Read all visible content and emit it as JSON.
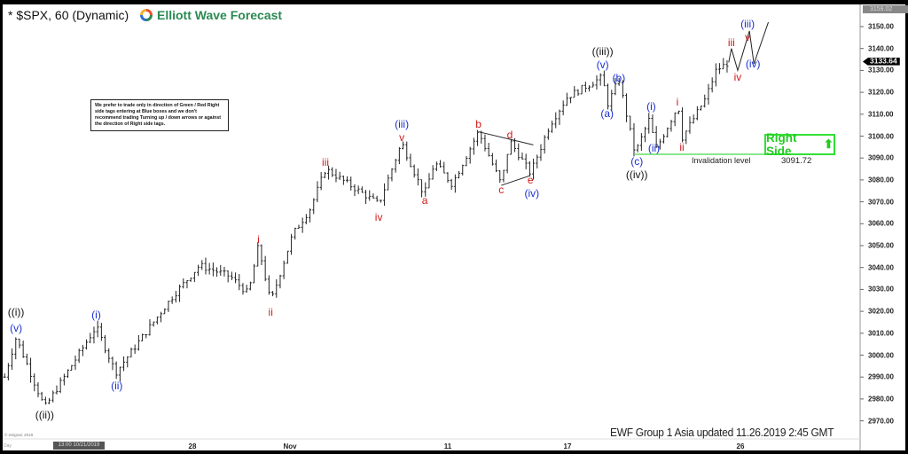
{
  "header": {
    "title": "* $SPX, 60 (Dynamic)",
    "logo_text": "Elliott Wave Forecast"
  },
  "note": "We prefer to trade only in direction of Green / Red Right side tags entering at Blue boxes and we don't recommend trading Turning up / down arrows or against the direction of Right side tags.",
  "right_side": {
    "label": "Right Side",
    "icon": "arrow-up-icon",
    "color": "#22cc22"
  },
  "invalidation": {
    "label": "Invalidation level",
    "value_text": "3091.72",
    "value": 3091.72,
    "start": "2019-11-21T03:00",
    "color": "#66dd66"
  },
  "footer": "EWF Group  1 Asia  updated 11.26.2019 2:45 GMT",
  "copyright": "© eSignal, 2019",
  "day_label": "Day",
  "crosshair_label": "13:00 10/21/2019",
  "price_tags": {
    "last": "3133.64",
    "top": "3159.02"
  },
  "colors": {
    "black_labels": "#111111",
    "blue_labels": "#1a2fd0",
    "red_labels": "#d01818",
    "bars": "#222222"
  },
  "chart_data": {
    "type": "ohlc-bar",
    "symbol": "$SPX",
    "interval": "60",
    "ylim": [
      2962,
      3160
    ],
    "yticks": [
      3150,
      3140,
      3130,
      3120,
      3110,
      3100,
      3090,
      3080,
      3070,
      3060,
      3050,
      3040,
      3030,
      3020,
      3010,
      3000,
      2990,
      2980,
      2970
    ],
    "ytick_labels": [
      "3150.00",
      "3140.00",
      "3130.00",
      "3120.00",
      "3110.00",
      "3100.00",
      "3090.00",
      "3080.00",
      "3070.00",
      "3060.00",
      "3050.00",
      "3040.00",
      "3030.00",
      "3020.00",
      "3010.00",
      "3000.00",
      "2990.00",
      "2980.00",
      "2970.00"
    ],
    "xticks": [
      {
        "label": "28",
        "date": "2019-10-28"
      },
      {
        "label": "Nov",
        "date": "2019-11-01"
      },
      {
        "label": "11",
        "date": "2019-11-11"
      },
      {
        "label": "17",
        "date": "2019-11-18"
      },
      {
        "label": "26",
        "date": "2019-11-26"
      }
    ],
    "last_price": 3133.64,
    "price_path": [
      [
        "2019-10-21T04:00",
        2990
      ],
      [
        "2019-10-21T14:00",
        3008
      ],
      [
        "2019-10-22T15:00",
        2976
      ],
      [
        "2019-10-24T12:00",
        3013
      ],
      [
        "2019-10-25T05:00",
        2992
      ],
      [
        "2019-10-27T07:00",
        3027
      ],
      [
        "2019-10-28T07:00",
        3041
      ],
      [
        "2019-10-29T13:00",
        3036
      ],
      [
        "2019-10-30T07:00",
        3028
      ],
      [
        "2019-10-30T17:00",
        3050
      ],
      [
        "2019-10-31T05:00",
        3024
      ],
      [
        "2019-11-01T04:00",
        3055
      ],
      [
        "2019-11-02T07:00",
        3067
      ],
      [
        "2019-11-03T06:00",
        3085
      ],
      [
        "2019-11-06T15:00",
        3069
      ],
      [
        "2019-11-08T02:00",
        3097
      ],
      [
        "2019-11-09T12:00",
        3073
      ],
      [
        "2019-11-10T04:00",
        3088
      ],
      [
        "2019-11-11T06:00",
        3078
      ],
      [
        "2019-11-12T19:00",
        3102
      ],
      [
        "2019-11-14T03:00",
        3078
      ],
      [
        "2019-11-14T15:00",
        3098
      ],
      [
        "2019-11-15T20:00",
        3083
      ],
      [
        "2019-11-16T23:00",
        3105
      ],
      [
        "2019-11-18T00:00",
        3118
      ],
      [
        "2019-11-19T15:00",
        3127
      ],
      [
        "2019-11-19T20:00",
        3114
      ],
      [
        "2019-11-20T09:00",
        3126
      ],
      [
        "2019-11-21T03:00",
        3092
      ],
      [
        "2019-11-21T21:00",
        3110
      ],
      [
        "2019-11-22T00:00",
        3092
      ],
      [
        "2019-11-23T03:00",
        3114
      ],
      [
        "2019-11-23T07:00",
        3099
      ],
      [
        "2019-11-24T09:00",
        3117
      ],
      [
        "2019-11-24T21:00",
        3130
      ],
      [
        "2019-11-25T11:00",
        3133.64
      ]
    ],
    "projection_path": [
      [
        "2019-11-25T11:00",
        3133.64
      ],
      [
        "2019-11-25T14:00",
        3140
      ],
      [
        "2019-11-25T21:00",
        3130
      ],
      [
        "2019-11-26T10:00",
        3148
      ],
      [
        "2019-11-26T15:00",
        3133
      ],
      [
        "2019-11-27T07:00",
        3152
      ]
    ],
    "triangle_lines": [
      [
        [
          "2019-11-12T19:00",
          3102
        ],
        [
          "2019-11-16T00:00",
          3096
        ]
      ],
      [
        [
          "2019-11-14T03:00",
          3077.5
        ],
        [
          "2019-11-15T20:00",
          3082
        ]
      ]
    ],
    "wave_labels": [
      {
        "text": "((i))",
        "color": "black",
        "date": "2019-10-21T14:00",
        "price": 3019.6
      },
      {
        "text": "(v)",
        "color": "blue",
        "date": "2019-10-21T14:00",
        "price": 3012.3
      },
      {
        "text": "((ii))",
        "color": "black",
        "date": "2019-10-22T15:00",
        "price": 2972.7
      },
      {
        "text": "(i)",
        "color": "blue",
        "date": "2019-10-24T12:00",
        "price": 3018.4
      },
      {
        "text": "(ii)",
        "color": "blue",
        "date": "2019-10-25T06:00",
        "price": 2986
      },
      {
        "text": "i",
        "color": "red",
        "date": "2019-10-30T17:00",
        "price": 3052.8
      },
      {
        "text": "ii",
        "color": "red",
        "date": "2019-10-31T05:00",
        "price": 3019.6
      },
      {
        "text": "iii",
        "color": "red",
        "date": "2019-11-03T06:00",
        "price": 3088
      },
      {
        "text": "iv",
        "color": "red",
        "date": "2019-11-06T15:00",
        "price": 3063
      },
      {
        "text": "(iii)",
        "color": "blue",
        "date": "2019-11-08T02:00",
        "price": 3105.5
      },
      {
        "text": "v",
        "color": "red",
        "date": "2019-11-08T02:00",
        "price": 3100
      },
      {
        "text": "a",
        "color": "red",
        "date": "2019-11-09T13:00",
        "price": 3070.6
      },
      {
        "text": "b",
        "color": "red",
        "date": "2019-11-12T19:00",
        "price": 3105.5
      },
      {
        "text": "c",
        "color": "red",
        "date": "2019-11-14T03:00",
        "price": 3075.5
      },
      {
        "text": "d",
        "color": "red",
        "date": "2019-11-14T15:00",
        "price": 3100.6
      },
      {
        "text": "e",
        "color": "red",
        "date": "2019-11-15T20:00",
        "price": 3080
      },
      {
        "text": "(iv)",
        "color": "blue",
        "date": "2019-11-15T22:00",
        "price": 3074.7
      },
      {
        "text": "((iii))",
        "color": "black",
        "date": "2019-11-19T15:00",
        "price": 3138.7
      },
      {
        "text": "(v)",
        "color": "blue",
        "date": "2019-11-19T15:00",
        "price": 3132.6
      },
      {
        "text": "(a)",
        "color": "blue",
        "date": "2019-11-19T20:00",
        "price": 3110.3
      },
      {
        "text": "(b)",
        "color": "blue",
        "date": "2019-11-20T09:00",
        "price": 3129
      },
      {
        "text": "(c)",
        "color": "blue",
        "date": "2019-11-21T05:00",
        "price": 3088.5
      },
      {
        "text": "((iv))",
        "color": "black",
        "date": "2019-11-21T05:00",
        "price": 3082.4
      },
      {
        "text": "(i)",
        "color": "blue",
        "date": "2019-11-21T21:00",
        "price": 3113.6
      },
      {
        "text": "(ii)",
        "color": "blue",
        "date": "2019-11-22T00:00",
        "price": 3091
      },
      {
        "text": "i",
        "color": "red",
        "date": "2019-11-23T02:00",
        "price": 3115.6
      },
      {
        "text": "ii",
        "color": "red",
        "date": "2019-11-23T07:00",
        "price": 3095
      },
      {
        "text": "iii",
        "color": "red",
        "date": "2019-11-25T14:00",
        "price": 3142.7
      },
      {
        "text": "iv",
        "color": "red",
        "date": "2019-11-25T21:00",
        "price": 3127
      },
      {
        "text": "(iii)",
        "color": "blue",
        "date": "2019-11-26T08:00",
        "price": 3151.2
      },
      {
        "text": "v",
        "color": "red",
        "date": "2019-11-26T08:00",
        "price": 3146.8
      },
      {
        "text": "(iv)",
        "color": "blue",
        "date": "2019-11-26T14:00",
        "price": 3130.6
      }
    ]
  }
}
